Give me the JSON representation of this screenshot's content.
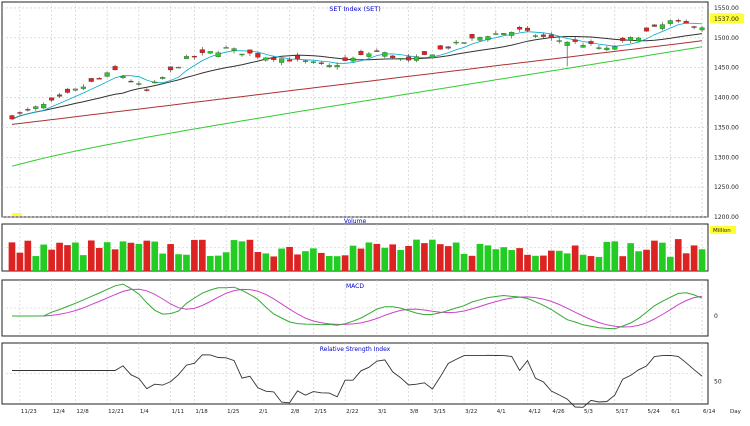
{
  "theme": {
    "background": "#ffffff",
    "grid_color": "#c8c8c8",
    "border_color": "#222222",
    "title_color": "#0000cc",
    "up_color": "#22cc22",
    "down_color": "#dd2222",
    "ma_short_color": "#00aacc",
    "ma_mid_color": "#333333",
    "ma_long_color": "#33cc33",
    "ma_longest_color": "#aa3333",
    "macd_color": "#33aa33",
    "signal_color": "#cc44cc",
    "rsi_color": "#333333",
    "last_price_box_color": "#ffff33",
    "volume_legend_color": "#ffff33"
  },
  "chart_data": [
    {
      "panel": "price",
      "type": "candlestick",
      "title": "SET Index (SET)",
      "ylim": [
        1200,
        1560
      ],
      "ytick_labels": [
        "1550.00",
        "1500.00",
        "1450.00",
        "1400.00",
        "1350.00",
        "1300.00",
        "1250.00",
        "1200.00"
      ],
      "last_price_label": "1537.00",
      "grid": true,
      "candles_approx": 88,
      "moving_averages": [
        "short",
        "mid",
        "long",
        "longest"
      ]
    },
    {
      "panel": "volume",
      "type": "bar",
      "title": "Volume",
      "legend_tag": "Million",
      "bars_approx": 88,
      "grid": true
    },
    {
      "panel": "macd",
      "type": "line",
      "title": "MACD",
      "series": [
        {
          "name": "MACD"
        },
        {
          "name": "Signal"
        }
      ],
      "ytick_labels": [
        "0"
      ],
      "grid": true
    },
    {
      "panel": "rsi",
      "type": "line",
      "title": "Relative Strength Index",
      "ytick_labels": [
        "50"
      ],
      "grid": true
    }
  ],
  "x_axis": {
    "tick_labels": [
      "11/23",
      "12/4",
      "12/8",
      "12/21",
      "1/4",
      "1/11",
      "1/18",
      "1/25",
      "2/1",
      "2/8",
      "2/15",
      "2/22",
      "3/1",
      "3/8",
      "3/15",
      "3/22",
      "4/1",
      "4/12",
      "4/26",
      "5/3",
      "5/17",
      "5/24",
      "6/1",
      "6/14"
    ],
    "unit_label": "Day"
  }
}
